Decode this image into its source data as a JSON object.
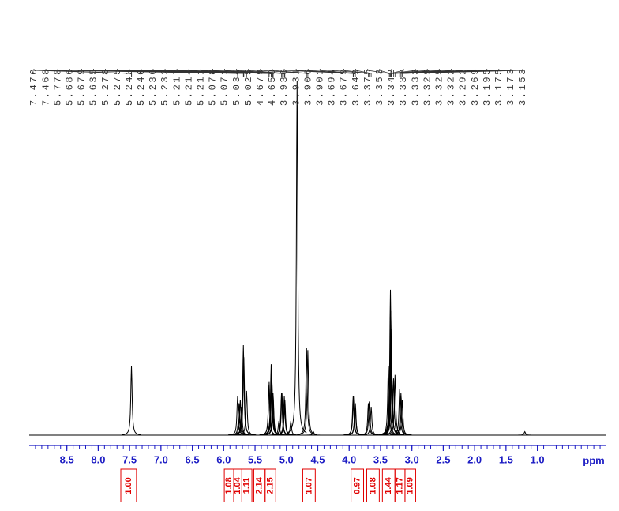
{
  "chart_data": {
    "type": "nmr",
    "xlabel": "ppm",
    "xlim": [
      9.1,
      -0.1
    ],
    "ylim": [
      0,
      100
    ],
    "xticks": [
      8.5,
      {
        "value": 8,
        "label": "8.0"
      },
      7.5,
      {
        "value": 7,
        "label": "7.0"
      },
      6.5,
      {
        "value": 6,
        "label": "6.0"
      },
      5.5,
      {
        "value": 5,
        "label": "5.0"
      },
      4.5,
      {
        "value": 4,
        "label": "4.0"
      },
      3.5,
      {
        "value": 3,
        "label": "3.0"
      },
      2.5,
      {
        "value": 2,
        "label": "2.0"
      },
      1.5,
      {
        "value": 1,
        "label": "1.0"
      }
    ],
    "xminorticks": [
      9.0,
      8.9,
      8.8,
      8.7,
      8.6,
      8.5,
      8.4,
      8.3,
      8.2,
      8.1,
      8.0,
      7.9,
      7.8,
      7.7,
      7.6,
      7.5,
      7.4,
      7.3,
      7.2,
      7.1,
      7.0,
      6.9,
      6.8,
      6.7,
      6.6,
      6.5,
      6.4,
      6.3,
      6.2,
      6.1,
      6.0,
      5.9,
      5.8,
      5.7,
      5.6,
      5.5,
      5.4,
      5.3,
      5.2,
      5.1,
      5.0,
      4.9,
      4.8,
      4.7,
      4.6,
      4.5,
      4.4,
      4.3,
      4.2,
      4.1,
      4.0,
      3.9,
      3.8,
      3.7,
      3.6,
      3.5,
      3.4,
      3.3,
      3.2,
      3.1,
      3.0,
      2.9,
      2.8,
      2.7,
      2.6,
      2.5,
      2.4,
      2.3,
      2.2,
      2.1,
      2.0,
      1.9,
      1.8,
      1.7,
      1.6,
      1.5,
      1.4,
      1.3,
      1.2,
      1.1,
      1.0,
      0.9,
      0.8,
      0.7,
      0.6,
      0.5,
      0.4,
      0.3,
      0.2,
      0.1,
      0.0
    ],
    "peak_labels": [
      {
        "value": 7.47,
        "label": "7.470"
      },
      {
        "value": 7.468,
        "label": "7.468"
      },
      {
        "value": 5.778,
        "label": "5.778"
      },
      {
        "value": 5.686,
        "label": "5.686"
      },
      {
        "value": 5.679,
        "label": "5.679"
      },
      {
        "value": 5.635,
        "label": "5.635"
      },
      {
        "value": 5.278,
        "label": "5.278"
      },
      {
        "value": 5.275,
        "label": "5.275"
      },
      {
        "value": 5.243,
        "label": "5.243"
      },
      {
        "value": 5.24,
        "label": "5.240"
      },
      {
        "value": 5.236,
        "label": "5.236"
      },
      {
        "value": 5.232,
        "label": "5.232"
      },
      {
        "value": 5.217,
        "label": "5.217"
      },
      {
        "value": 5.214,
        "label": "5.214"
      },
      {
        "value": 5.211,
        "label": "5.211"
      },
      {
        "value": 5.078,
        "label": "5.078"
      },
      {
        "value": 5.071,
        "label": "5.071"
      },
      {
        "value": 5.034,
        "label": "5.034"
      },
      {
        "value": 5.025,
        "label": "5.025"
      },
      {
        "value": 4.679,
        "label": "4.679"
      },
      {
        "value": 4.659,
        "label": "4.659"
      },
      {
        "value": 3.936,
        "label": "3.936"
      },
      {
        "value": 3.931,
        "label": "3.931"
      },
      {
        "value": 3.906,
        "label": "3.906"
      },
      {
        "value": 3.901,
        "label": "3.901"
      },
      {
        "value": 3.694,
        "label": "3.694"
      },
      {
        "value": 3.679,
        "label": "3.679"
      },
      {
        "value": 3.649,
        "label": "3.649"
      },
      {
        "value": 3.375,
        "label": "3.375"
      },
      {
        "value": 3.353,
        "label": "3.353"
      },
      {
        "value": 3.342,
        "label": "3.342"
      },
      {
        "value": 3.337,
        "label": "3.337"
      },
      {
        "value": 3.333,
        "label": "3.333"
      },
      {
        "value": 3.329,
        "label": "3.329"
      },
      {
        "value": 3.325,
        "label": "3.325"
      },
      {
        "value": 3.322,
        "label": "3.322"
      },
      {
        "value": 3.292,
        "label": "3.292"
      },
      {
        "value": 3.269,
        "label": "3.269"
      },
      {
        "value": 3.195,
        "label": "3.195"
      },
      {
        "value": 3.175,
        "label": "3.175"
      },
      {
        "value": 3.173,
        "label": "3.173"
      },
      {
        "value": 3.153,
        "label": "3.153"
      }
    ],
    "peaks": {
      "x": [
        7.47,
        5.778,
        5.755,
        5.735,
        5.715,
        5.686,
        5.679,
        5.635,
        5.278,
        5.275,
        5.243,
        5.24,
        5.236,
        5.232,
        5.217,
        5.214,
        5.211,
        5.12,
        5.078,
        5.071,
        5.034,
        5.025,
        4.93,
        4.83,
        4.679,
        4.659,
        4.57,
        3.936,
        3.931,
        3.906,
        3.901,
        3.694,
        3.679,
        3.649,
        3.375,
        3.353,
        3.342,
        3.337,
        3.333,
        3.329,
        3.325,
        3.322,
        3.292,
        3.269,
        3.195,
        3.175,
        3.173,
        3.153,
        1.2
      ],
      "values": [
        19.6,
        11,
        9,
        10,
        8,
        25.4,
        22,
        12.5,
        14,
        15,
        20,
        19,
        18,
        16,
        12,
        12,
        11,
        4,
        12,
        12,
        11,
        10,
        4,
        100,
        24.5,
        24,
        1,
        11,
        11,
        9,
        9,
        9,
        9.5,
        8,
        19.6,
        17,
        41,
        35,
        30,
        28,
        22,
        20,
        16,
        17,
        13,
        12,
        11,
        10,
        1
      ]
    },
    "integrals": {
      "ranges": [
        [
          7.64,
          7.39
        ],
        [
          5.99,
          5.84
        ],
        [
          5.84,
          5.71
        ],
        [
          5.71,
          5.55
        ],
        [
          5.52,
          5.34
        ],
        [
          5.34,
          5.17
        ],
        [
          4.74,
          4.54
        ],
        [
          3.97,
          3.77
        ],
        [
          3.72,
          3.52
        ],
        [
          3.47,
          3.27
        ],
        [
          3.27,
          3.11
        ],
        [
          3.11,
          2.94
        ]
      ],
      "values": [
        1.0,
        1.08,
        1.04,
        1.11,
        2.14,
        2.15,
        1.07,
        0.97,
        1.08,
        1.44,
        1.17,
        1.09
      ],
      "value_labels": [
        "1.00",
        "1.08",
        "1.04",
        "1.11",
        "2.14",
        "2.15",
        "1.07",
        "0.97",
        "1.08",
        "1.44",
        "1.17",
        "1.09"
      ]
    },
    "colors": {
      "axis": "#1c1cc4",
      "integral": "#e00000",
      "spectrum": "#000000"
    }
  }
}
